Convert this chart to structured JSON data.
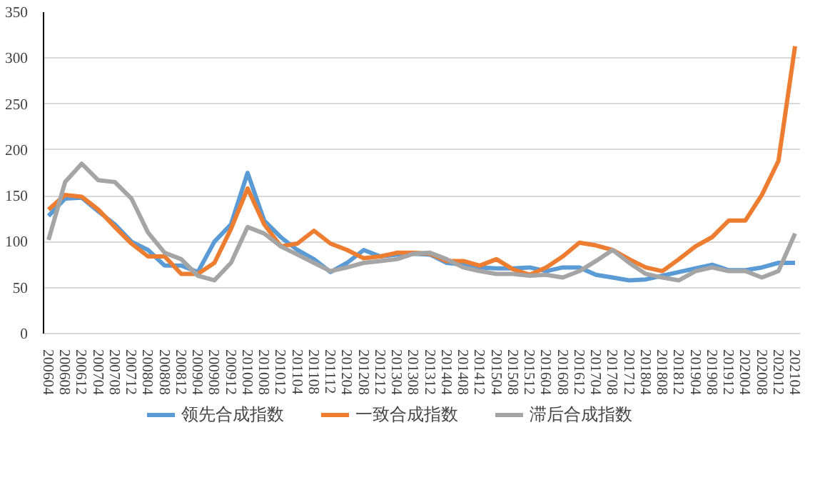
{
  "chart_data": {
    "type": "line",
    "categories": [
      "200604",
      "200608",
      "200612",
      "200704",
      "200708",
      "200712",
      "200804",
      "200808",
      "200812",
      "200904",
      "200908",
      "200912",
      "201004",
      "201008",
      "201012",
      "201104",
      "201108",
      "201112",
      "201204",
      "201208",
      "201212",
      "201304",
      "201308",
      "201312",
      "201404",
      "201408",
      "201412",
      "201504",
      "201508",
      "201512",
      "201604",
      "201608",
      "201612",
      "201704",
      "201708",
      "201712",
      "201804",
      "201808",
      "201812",
      "201904",
      "201908",
      "201912",
      "202004",
      "202008",
      "202012",
      "202104"
    ],
    "series": [
      {
        "name": "领先合成指数",
        "color": "#5b9bd5",
        "values": [
          128,
          147,
          148,
          133,
          119,
          100,
          91,
          74,
          74,
          67,
          100,
          119,
          175,
          123,
          105,
          91,
          81,
          67,
          77,
          91,
          84,
          86,
          87,
          86,
          77,
          75,
          72,
          71,
          71,
          72,
          68,
          72,
          72,
          64,
          61,
          58,
          59,
          63,
          67,
          71,
          75,
          69,
          69,
          72,
          77,
          77
        ]
      },
      {
        "name": "一致合成指数",
        "color": "#ed7d31",
        "values": [
          135,
          151,
          149,
          135,
          116,
          98,
          84,
          84,
          65,
          65,
          77,
          114,
          158,
          119,
          95,
          98,
          112,
          98,
          91,
          82,
          84,
          88,
          88,
          87,
          79,
          79,
          74,
          81,
          70,
          64,
          72,
          84,
          99,
          96,
          91,
          81,
          72,
          68,
          81,
          95,
          105,
          123,
          123,
          151,
          188,
          313
        ]
      },
      {
        "name": "滞后合成指数",
        "color": "#a5a5a5",
        "values": [
          102,
          165,
          185,
          167,
          165,
          147,
          110,
          88,
          81,
          63,
          58,
          77,
          116,
          109,
          95,
          86,
          77,
          68,
          72,
          77,
          79,
          81,
          87,
          88,
          81,
          72,
          68,
          65,
          65,
          63,
          64,
          61,
          68,
          79,
          91,
          77,
          65,
          61,
          58,
          68,
          72,
          68,
          68,
          61,
          68,
          109
        ]
      }
    ],
    "ylim": [
      0,
      350
    ],
    "yticks": [
      0,
      50,
      100,
      150,
      200,
      250,
      300,
      350
    ],
    "grid": "y",
    "legend": "bottom",
    "line_style": "solid"
  }
}
